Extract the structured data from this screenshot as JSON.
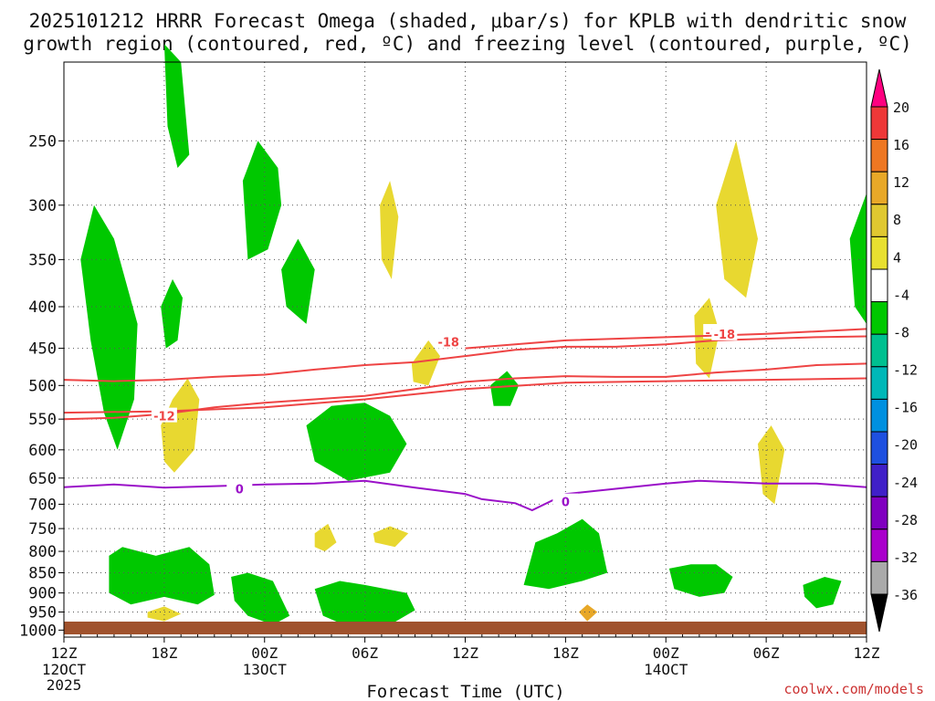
{
  "chart_data": {
    "type": "time-height",
    "title_line1": "2025101212 HRRR Forecast Omega (shaded, μbar/s) for KPLB with dendritic snow",
    "title_line2": "growth region (contoured, red, ºC) and freezing level (contoured, purple, ºC)",
    "xlabel": "Forecast Time (UTC)",
    "credit": "coolwx.com/models",
    "xlim": [
      0,
      48
    ],
    "ylim": [
      1020,
      200
    ],
    "y_ticks": [
      250,
      300,
      350,
      400,
      450,
      500,
      550,
      600,
      650,
      700,
      750,
      800,
      850,
      900,
      950,
      1000
    ],
    "x_ticks": [
      {
        "hour": 0,
        "label": "12Z",
        "date": "12OCT",
        "year": "2025"
      },
      {
        "hour": 6,
        "label": "18Z",
        "date": "",
        "year": ""
      },
      {
        "hour": 12,
        "label": "00Z",
        "date": "13OCT",
        "year": ""
      },
      {
        "hour": 18,
        "label": "06Z",
        "date": "",
        "year": ""
      },
      {
        "hour": 24,
        "label": "12Z",
        "date": "",
        "year": ""
      },
      {
        "hour": 30,
        "label": "18Z",
        "date": "",
        "year": ""
      },
      {
        "hour": 36,
        "label": "00Z",
        "date": "14OCT",
        "year": ""
      },
      {
        "hour": 42,
        "label": "06Z",
        "date": "",
        "year": ""
      },
      {
        "hour": 48,
        "label": "12Z",
        "date": "",
        "year": ""
      }
    ],
    "colorbar": {
      "labels": [
        "20",
        "16",
        "12",
        "8",
        "4",
        "-4",
        "-8",
        "-12",
        "-16",
        "-20",
        "-24",
        "-28",
        "-32",
        "-36"
      ],
      "colors": [
        "#ff0080",
        "#ee3838",
        "#ee7722",
        "#e8a828",
        "#e0c830",
        "#e8e030",
        "#ffffff",
        "#00c800",
        "#00c090",
        "#00b8b8",
        "#0090e0",
        "#1e50e0",
        "#4020c8",
        "#8000c0",
        "#aa00cc",
        "#aaaaaa",
        "#000000"
      ]
    },
    "contours": [
      {
        "name": "-18 C isotherm",
        "level": "-18",
        "color": "#ee4444",
        "hours": [
          0,
          3,
          6,
          9,
          12,
          15,
          18,
          21,
          24,
          27,
          30,
          33,
          36,
          39,
          42,
          45,
          48
        ],
        "pressure": [
          550,
          548,
          542,
          532,
          525,
          520,
          515,
          505,
          495,
          490,
          487,
          488,
          488,
          482,
          478,
          472,
          470
        ],
        "label_hour": 23,
        "label_pressure": 442
      },
      {
        "name": "-12 C isotherm",
        "level": "-12",
        "color": "#ee4444",
        "hours": [
          0,
          3,
          6,
          9,
          12,
          15,
          18,
          21,
          24,
          27,
          30,
          33,
          36,
          39,
          42,
          45,
          48
        ],
        "pressure": [
          492,
          494,
          492,
          488,
          485,
          478,
          472,
          468,
          460,
          452,
          448,
          448,
          445,
          440,
          438,
          436,
          435
        ],
        "label_hour": 39,
        "label_pressure": 430
      },
      {
        "name": "-12 C isotherm lower",
        "level": "-12",
        "color": "#ee4444",
        "hours": [
          0,
          6,
          12,
          18,
          24,
          30,
          36,
          42,
          48
        ],
        "pressure": [
          540,
          538,
          532,
          520,
          505,
          496,
          494,
          492,
          490
        ],
        "label_hour": 6,
        "label_pressure": 545
      },
      {
        "name": "-18 C isotherm upper",
        "level": "-18",
        "color": "#ee4444",
        "hours": [
          24,
          30,
          36,
          42,
          48
        ],
        "pressure": [
          450,
          440,
          436,
          432,
          426
        ],
        "label_hour": 39.5,
        "label_pressure": 432
      },
      {
        "name": "freezing level",
        "level": "0",
        "color": "#9a10c8",
        "hours": [
          0,
          3,
          6,
          9,
          12,
          15,
          18,
          21,
          24,
          25,
          27,
          28,
          30,
          33,
          36,
          38,
          42,
          45,
          48
        ],
        "pressure": [
          667,
          662,
          668,
          665,
          662,
          660,
          655,
          668,
          680,
          690,
          698,
          712,
          680,
          670,
          660,
          655,
          660,
          660,
          667
        ],
        "label_hour": 10.5,
        "label_pressure": 670
      },
      {
        "name": "freezing level label 2",
        "level": "0",
        "color": "#9a10c8",
        "hours": [],
        "pressure": [],
        "label_hour": 30,
        "label_pressure": 695
      }
    ],
    "regions": [
      {
        "name": "ascent -4 to -8 left column",
        "class": "green",
        "pts": [
          [
            1.0,
            350
          ],
          [
            1.8,
            300
          ],
          [
            3.0,
            330
          ],
          [
            4.4,
            420
          ],
          [
            4.2,
            520
          ],
          [
            3.2,
            600
          ],
          [
            2.4,
            540
          ],
          [
            1.6,
            440
          ]
        ]
      },
      {
        "name": "ascent 18Z column",
        "class": "green",
        "pts": [
          [
            6.0,
            190
          ],
          [
            7.0,
            200
          ],
          [
            7.5,
            260
          ],
          [
            6.8,
            270
          ],
          [
            6.2,
            240
          ]
        ]
      },
      {
        "name": "ascent 18Z mid",
        "class": "green",
        "pts": [
          [
            5.8,
            400
          ],
          [
            6.5,
            370
          ],
          [
            7.1,
            390
          ],
          [
            6.8,
            440
          ],
          [
            6.1,
            450
          ]
        ]
      },
      {
        "name": "ascent 00Z upper",
        "class": "green",
        "pts": [
          [
            10.7,
            280
          ],
          [
            11.6,
            250
          ],
          [
            12.8,
            270
          ],
          [
            13.0,
            300
          ],
          [
            12.2,
            340
          ],
          [
            11.0,
            350
          ]
        ]
      },
      {
        "name": "ascent 02Z",
        "class": "green",
        "pts": [
          [
            13.0,
            360
          ],
          [
            14.0,
            330
          ],
          [
            15.0,
            360
          ],
          [
            14.5,
            420
          ],
          [
            13.3,
            400
          ]
        ]
      },
      {
        "name": "ascent 03Z-08Z mid",
        "class": "green",
        "pts": [
          [
            14.5,
            560
          ],
          [
            16.0,
            530
          ],
          [
            18.0,
            525
          ],
          [
            19.5,
            545
          ],
          [
            20.5,
            590
          ],
          [
            19.5,
            640
          ],
          [
            17.0,
            655
          ],
          [
            15.0,
            620
          ]
        ]
      },
      {
        "name": "ascent 14Z",
        "class": "green",
        "pts": [
          [
            25.5,
            500
          ],
          [
            26.5,
            480
          ],
          [
            27.2,
            500
          ],
          [
            26.7,
            530
          ],
          [
            25.7,
            530
          ]
        ]
      },
      {
        "name": "ascent right edge",
        "class": "green",
        "pts": [
          [
            47.0,
            330
          ],
          [
            48,
            290
          ],
          [
            48,
            420
          ],
          [
            47.3,
            400
          ]
        ]
      },
      {
        "name": "low-level left",
        "class": "green",
        "pts": [
          [
            2.7,
            810
          ],
          [
            3.5,
            790
          ],
          [
            5.5,
            810
          ],
          [
            7.5,
            790
          ],
          [
            8.7,
            830
          ],
          [
            9.0,
            905
          ],
          [
            8.0,
            930
          ],
          [
            6.0,
            910
          ],
          [
            4.0,
            930
          ],
          [
            2.7,
            900
          ]
        ]
      },
      {
        "name": "low-level 11Z-13Z",
        "class": "green",
        "pts": [
          [
            10.0,
            860
          ],
          [
            11.0,
            850
          ],
          [
            12.5,
            870
          ],
          [
            13.5,
            960
          ],
          [
            12.5,
            985
          ],
          [
            11.0,
            960
          ],
          [
            10.2,
            920
          ]
        ]
      },
      {
        "name": "low-level 14Z-20Z",
        "class": "green",
        "pts": [
          [
            15.0,
            890
          ],
          [
            16.5,
            870
          ],
          [
            18.0,
            880
          ],
          [
            20.5,
            900
          ],
          [
            21.0,
            945
          ],
          [
            19.5,
            985
          ],
          [
            17.0,
            990
          ],
          [
            15.5,
            960
          ]
        ]
      },
      {
        "name": "low-level 17Z-20Z",
        "class": "green",
        "pts": [
          [
            28.2,
            780
          ],
          [
            29.5,
            760
          ],
          [
            31.0,
            730
          ],
          [
            32.0,
            760
          ],
          [
            32.5,
            850
          ],
          [
            31.0,
            870
          ],
          [
            29.0,
            890
          ],
          [
            27.5,
            880
          ]
        ]
      },
      {
        "name": "low-level 36Z-40Z",
        "class": "green",
        "pts": [
          [
            36.2,
            840
          ],
          [
            37.5,
            830
          ],
          [
            39.0,
            830
          ],
          [
            40.0,
            860
          ],
          [
            39.5,
            900
          ],
          [
            38.0,
            910
          ],
          [
            36.5,
            890
          ]
        ]
      },
      {
        "name": "low-level 45Z",
        "class": "green",
        "pts": [
          [
            44.2,
            880
          ],
          [
            45.5,
            860
          ],
          [
            46.5,
            870
          ],
          [
            46.0,
            930
          ],
          [
            45.0,
            940
          ],
          [
            44.3,
            910
          ]
        ]
      },
      {
        "name": "descent 18Z",
        "class": "yellow",
        "pts": [
          [
            5.8,
            560
          ],
          [
            6.5,
            520
          ],
          [
            7.4,
            490
          ],
          [
            8.1,
            520
          ],
          [
            7.8,
            600
          ],
          [
            6.6,
            640
          ],
          [
            6.0,
            620
          ]
        ]
      },
      {
        "name": "descent 07Z",
        "class": "yellow",
        "pts": [
          [
            20.8,
            470
          ],
          [
            21.8,
            440
          ],
          [
            22.5,
            460
          ],
          [
            21.8,
            500
          ],
          [
            20.9,
            495
          ]
        ]
      },
      {
        "name": "descent 19Z upper",
        "class": "yellow",
        "pts": [
          [
            18.9,
            300
          ],
          [
            19.5,
            280
          ],
          [
            20.0,
            310
          ],
          [
            19.6,
            370
          ],
          [
            19.0,
            350
          ]
        ]
      },
      {
        "name": "descent 04Z",
        "class": "yellow",
        "pts": [
          [
            39.0,
            300
          ],
          [
            40.2,
            250
          ],
          [
            41.5,
            330
          ],
          [
            40.8,
            390
          ],
          [
            39.5,
            370
          ]
        ]
      },
      {
        "name": "descent 02Z",
        "class": "yellow",
        "pts": [
          [
            37.7,
            410
          ],
          [
            38.6,
            390
          ],
          [
            39.2,
            430
          ],
          [
            38.6,
            490
          ],
          [
            37.8,
            470
          ]
        ]
      },
      {
        "name": "descent 03Z",
        "class": "yellow",
        "pts": [
          [
            41.5,
            590
          ],
          [
            42.3,
            560
          ],
          [
            43.1,
            600
          ],
          [
            42.5,
            700
          ],
          [
            41.8,
            680
          ]
        ]
      },
      {
        "name": "descent 08Z",
        "class": "yellow",
        "pts": [
          [
            15.0,
            760
          ],
          [
            15.8,
            740
          ],
          [
            16.3,
            780
          ],
          [
            15.6,
            800
          ],
          [
            15.0,
            790
          ]
        ]
      },
      {
        "name": "descent 13Z",
        "class": "yellow",
        "pts": [
          [
            18.5,
            760
          ],
          [
            19.5,
            745
          ],
          [
            20.6,
            760
          ],
          [
            19.8,
            790
          ],
          [
            18.6,
            780
          ]
        ]
      },
      {
        "name": "descent 19Z low",
        "class": "orange",
        "pts": [
          [
            30.8,
            950
          ],
          [
            31.3,
            930
          ],
          [
            31.9,
            950
          ],
          [
            31.3,
            975
          ]
        ]
      },
      {
        "name": "descent 15Z low",
        "class": "yellow",
        "pts": [
          [
            5.0,
            950
          ],
          [
            6.0,
            935
          ],
          [
            7.0,
            955
          ],
          [
            6.0,
            975
          ],
          [
            5.0,
            965
          ]
        ]
      }
    ]
  }
}
